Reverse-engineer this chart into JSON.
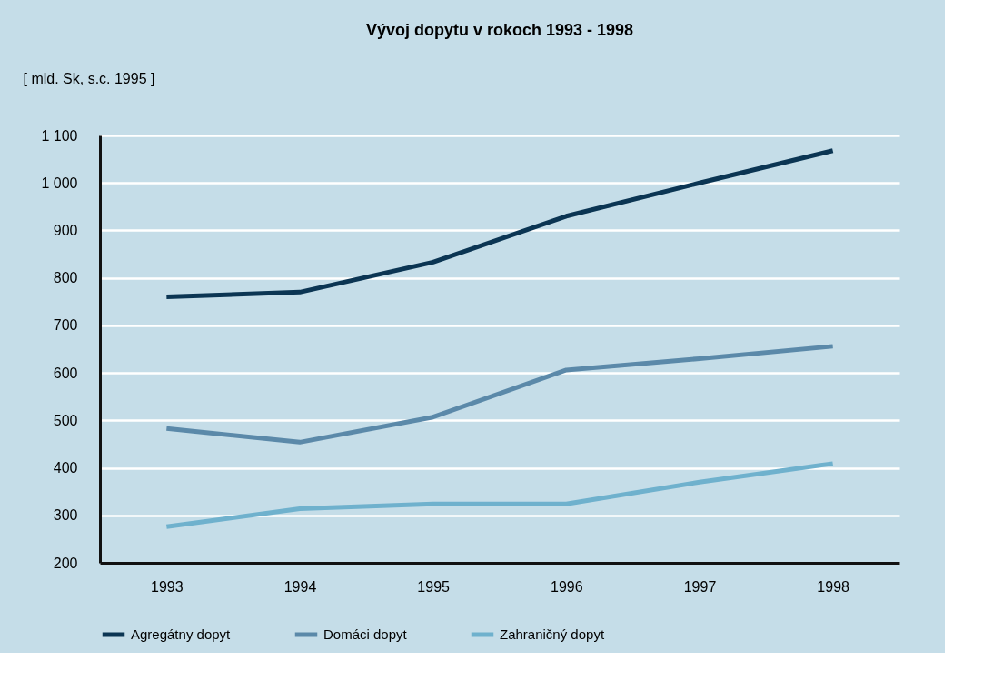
{
  "chart_data": {
    "type": "line",
    "title": "Vývoj dopytu v rokoch 1993 - 1998",
    "ylabel": "[ mld. Sk, s.c. 1995 ]",
    "categories": [
      "1993",
      "1994",
      "1995",
      "1996",
      "1997",
      "1998"
    ],
    "series": [
      {
        "name": "Agregátny dopyt",
        "color": "#0b3553",
        "values": [
          760,
          770,
          833,
          930,
          1000,
          1068
        ]
      },
      {
        "name": "Domáci dopyt",
        "color": "#5b89a9",
        "values": [
          483,
          454,
          507,
          606,
          630,
          656
        ]
      },
      {
        "name": "Zahraničný dopyt",
        "color": "#6fb1cd",
        "values": [
          276,
          314,
          324,
          324,
          370,
          409
        ]
      }
    ],
    "ylim": [
      200,
      1100
    ],
    "yticks": [
      200,
      300,
      400,
      500,
      600,
      700,
      800,
      900,
      {
        "value": 1000,
        "label": "1 000"
      },
      {
        "value": 1100,
        "label": "1 100"
      }
    ],
    "grid": "y",
    "legend": "bottom",
    "line_style": "solid",
    "marker": "none"
  }
}
